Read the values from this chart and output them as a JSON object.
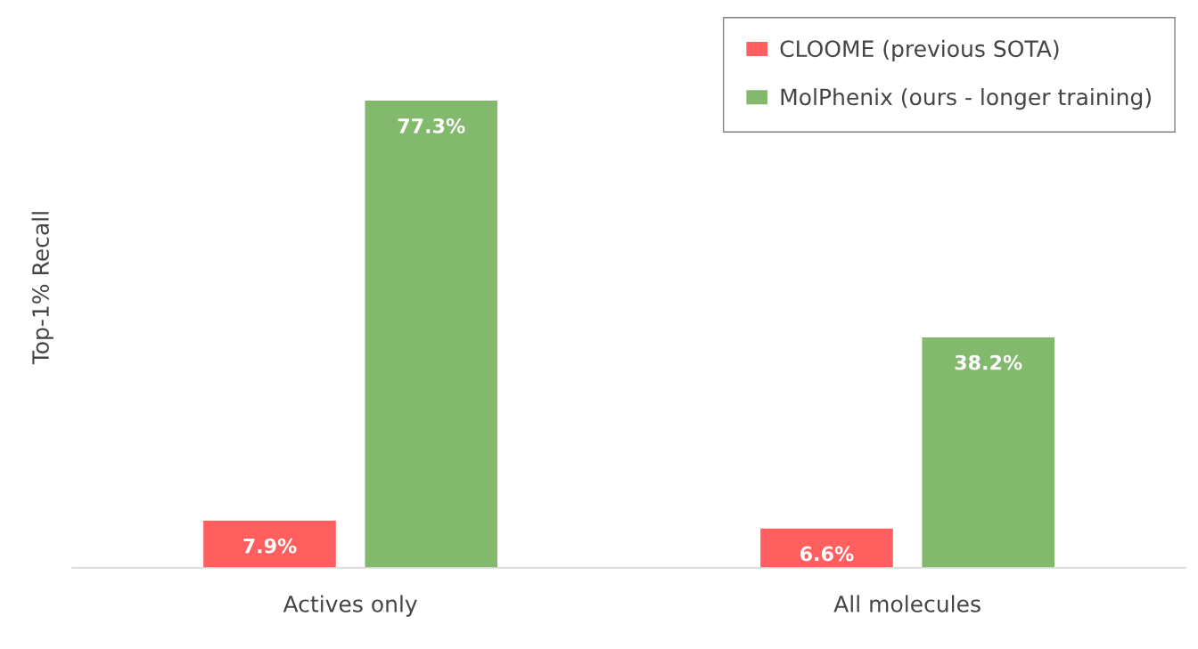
{
  "chart_data": {
    "type": "bar",
    "ylabel": "Top-1% Recall",
    "categories": [
      "Actives only",
      "All molecules"
    ],
    "series": [
      {
        "name": "CLOOME (previous SOTA)",
        "color": "#ff5f5f",
        "values": [
          7.9,
          6.6
        ],
        "value_labels": [
          "7.9%",
          "6.6%"
        ]
      },
      {
        "name": "MolPhenix (ours - longer training)",
        "color": "#82b96c",
        "values": [
          77.3,
          38.2
        ],
        "value_labels": [
          "77.3%",
          "38.2%"
        ]
      }
    ],
    "legend": "top right",
    "grid": false
  }
}
